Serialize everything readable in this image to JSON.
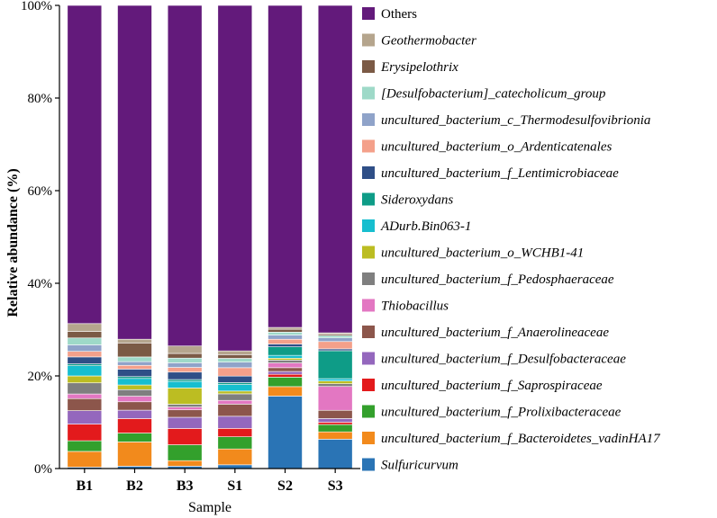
{
  "chart_data": {
    "type": "bar",
    "stacked": true,
    "xlabel": "Sample",
    "ylabel": "Relative abundance (%)",
    "ylim": [
      0,
      100
    ],
    "yticks": [
      0,
      20,
      40,
      60,
      80,
      100
    ],
    "ytick_labels": [
      "0%",
      "20%",
      "40%",
      "60%",
      "80%",
      "100%"
    ],
    "categories": [
      "B1",
      "B2",
      "B3",
      "S1",
      "S2",
      "S3"
    ],
    "legend_position": "right",
    "series": [
      {
        "name": "Sulfuricurvum",
        "color": "#2A74B5",
        "values": [
          0.3,
          0.5,
          0.5,
          0.8,
          15.3,
          6.4
        ]
      },
      {
        "name": "uncultured_bacterium_f_Bacteroidetes_vadinHA17",
        "color": "#F28A1C",
        "values": [
          3.4,
          5.2,
          1.2,
          3.4,
          2.0,
          1.6
        ]
      },
      {
        "name": "uncultured_bacterium_f_Prolixibacteraceae",
        "color": "#33A02C",
        "values": [
          2.3,
          1.9,
          3.4,
          2.6,
          2.0,
          1.6
        ]
      },
      {
        "name": "uncultured_bacterium_f_Saprospiraceae",
        "color": "#E31A1C",
        "values": [
          3.6,
          3.1,
          3.5,
          1.8,
          0.6,
          0.5
        ]
      },
      {
        "name": "uncultured_bacterium_f_Desulfobacteraceae",
        "color": "#9467BD",
        "values": [
          2.9,
          1.8,
          2.4,
          2.6,
          0.6,
          0.8
        ]
      },
      {
        "name": "uncultured_bacterium_f_Anaerolineaceae",
        "color": "#8C564B",
        "values": [
          2.6,
          1.8,
          1.6,
          2.6,
          0.8,
          1.8
        ]
      },
      {
        "name": "Thiobacillus",
        "color": "#E377C2",
        "values": [
          1.0,
          1.2,
          0.6,
          0.8,
          1.0,
          5.2
        ]
      },
      {
        "name": "uncultured_bacterium_f_Pedosphaeraceae",
        "color": "#7F7F7F",
        "values": [
          2.4,
          1.4,
          0.6,
          1.4,
          0.6,
          0.6
        ]
      },
      {
        "name": "uncultured_bacterium_o_WCHB1-41",
        "color": "#BCBD22",
        "values": [
          1.5,
          1.0,
          3.5,
          0.6,
          0.4,
          0.6
        ]
      },
      {
        "name": "ADurb.Bin063-1",
        "color": "#17BECF",
        "values": [
          2.2,
          1.4,
          1.4,
          1.4,
          0.6,
          0.5
        ]
      },
      {
        "name": "Sideroxydans",
        "color": "#0E9C87",
        "values": [
          0.4,
          0.4,
          0.4,
          0.4,
          1.8,
          6.1
        ]
      },
      {
        "name": "uncultured_bacterium_f_Lentimicrobiaceae",
        "color": "#2F4F87",
        "values": [
          1.5,
          1.6,
          1.6,
          1.4,
          0.6,
          0.4
        ]
      },
      {
        "name": "uncultured_bacterium_o_Ardenticatenales",
        "color": "#F4A08A",
        "values": [
          1.2,
          0.8,
          1.0,
          1.8,
          1.0,
          1.6
        ]
      },
      {
        "name": "uncultured_bacterium_c_Thermodesulfovibrionia",
        "color": "#8FA3C9",
        "values": [
          1.4,
          0.8,
          1.0,
          1.2,
          0.9,
          0.8
        ]
      },
      {
        "name": "[Desulfobacterium]_catecholicum_group",
        "color": "#9ED9C8",
        "values": [
          1.5,
          1.0,
          1.0,
          0.8,
          0.6,
          0.5
        ]
      },
      {
        "name": "Erysipelothrix",
        "color": "#7B5A45",
        "values": [
          1.4,
          3.0,
          1.0,
          0.8,
          0.6,
          0.3
        ]
      },
      {
        "name": "Geothermobacter",
        "color": "#B5A58D",
        "values": [
          1.7,
          0.8,
          1.6,
          0.8,
          0.4,
          0.3
        ]
      },
      {
        "name": "Others",
        "color": "#631A7B",
        "values": [
          68.7,
          71.5,
          73.1,
          74.0,
          68.0,
          71.4
        ]
      }
    ]
  }
}
